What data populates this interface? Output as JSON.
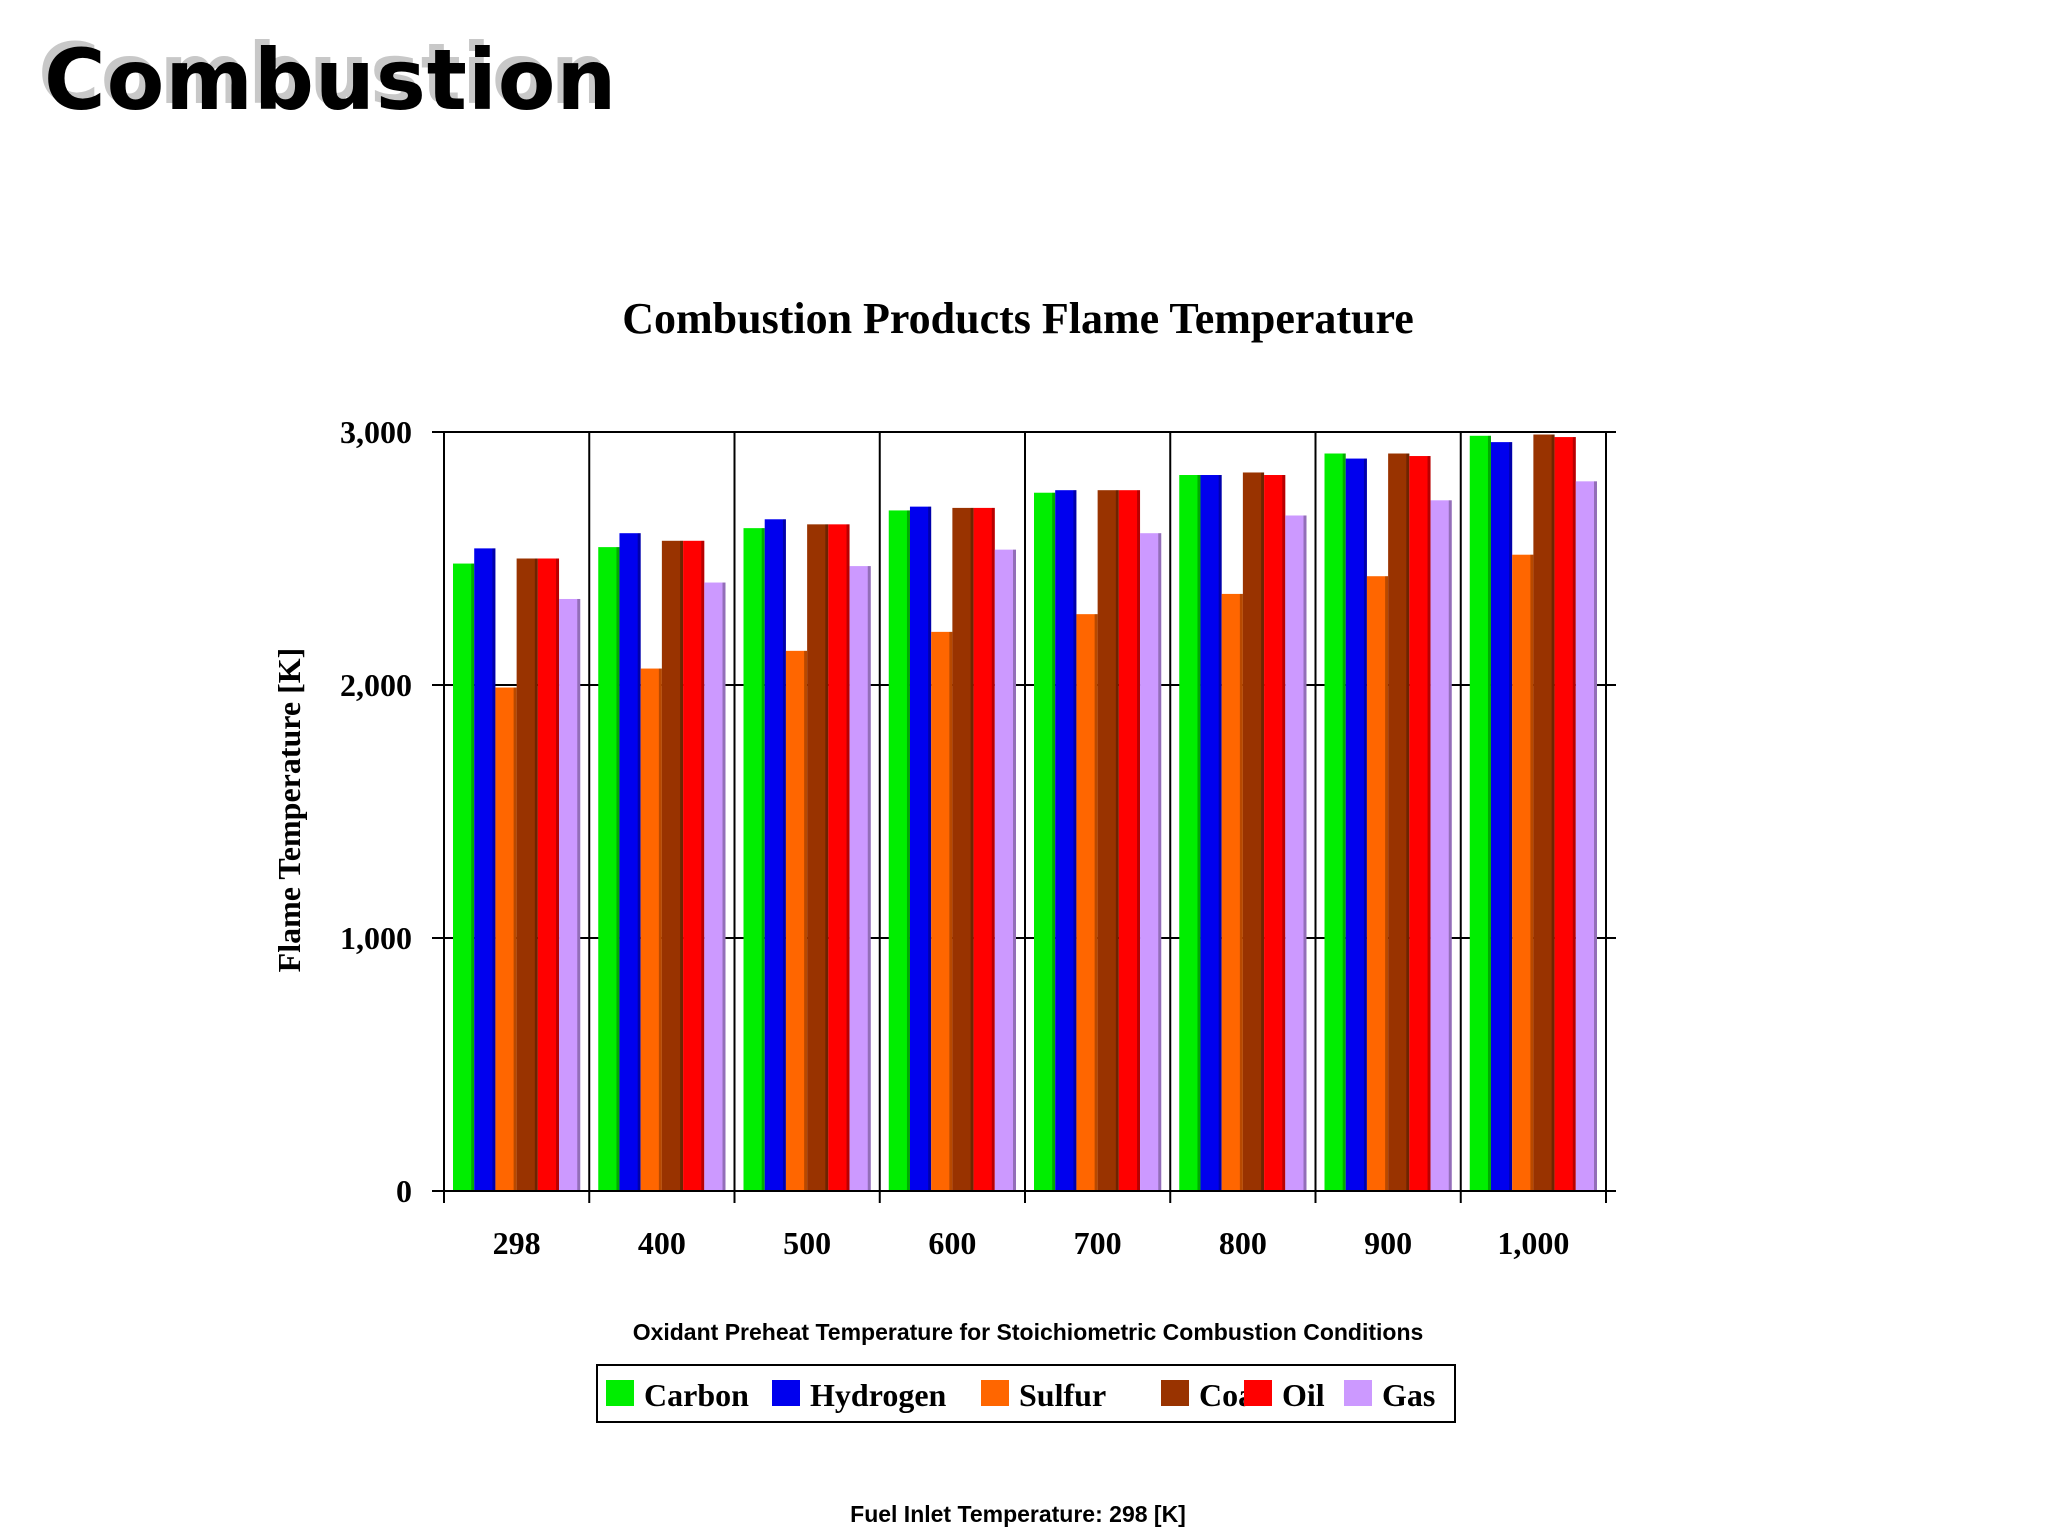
{
  "slide": {
    "title": "Combustion"
  },
  "footnote": "Fuel Inlet Temperature:  298 [K]",
  "chart_data": {
    "type": "bar",
    "title": "Combustion Products Flame Temperature",
    "xlabel": "Oxidant Preheat Temperature for Stoichiometric Combustion Conditions",
    "ylabel": "Flame Temperature [K]",
    "ylim": [
      0,
      3000
    ],
    "yticks": [
      0,
      1000,
      2000,
      3000
    ],
    "ytick_labels": [
      "0",
      "1,000",
      "2,000",
      "3,000"
    ],
    "categories": [
      "298",
      "400",
      "500",
      "600",
      "700",
      "800",
      "900",
      "1,000"
    ],
    "grid": "horizontal and vertical",
    "legend": "bottom",
    "series": [
      {
        "name": "Carbon",
        "color": "#00ee00",
        "values": [
          2480,
          2545,
          2620,
          2690,
          2760,
          2830,
          2915,
          2985
        ]
      },
      {
        "name": "Hydrogen",
        "color": "#0000ee",
        "values": [
          2540,
          2600,
          2655,
          2705,
          2770,
          2830,
          2895,
          2960
        ]
      },
      {
        "name": "Sulfur",
        "color": "#ff6600",
        "values": [
          1990,
          2065,
          2135,
          2210,
          2280,
          2360,
          2430,
          2515
        ]
      },
      {
        "name": "Coal",
        "color": "#993300",
        "values": [
          2500,
          2570,
          2635,
          2700,
          2770,
          2840,
          2915,
          2990
        ]
      },
      {
        "name": "Oil",
        "color": "#ff0000",
        "values": [
          2500,
          2570,
          2635,
          2700,
          2770,
          2830,
          2905,
          2980
        ]
      },
      {
        "name": "Gas",
        "color": "#cc99ff",
        "values": [
          2340,
          2405,
          2470,
          2535,
          2600,
          2670,
          2730,
          2805
        ]
      }
    ]
  }
}
